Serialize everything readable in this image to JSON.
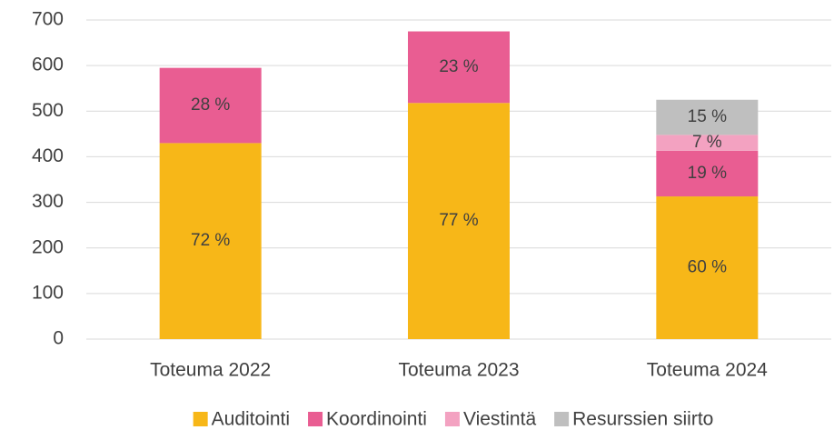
{
  "chart_data": {
    "type": "stacked-bar",
    "categories": [
      "Toteuma 2022",
      "Toteuma 2023",
      "Toteuma 2024"
    ],
    "series": [
      {
        "name": "Auditointi",
        "color": "#f7b718",
        "values": [
          430,
          518,
          313
        ],
        "value_labels": [
          "72 %",
          "77 %",
          "60 %"
        ]
      },
      {
        "name": "Koordinointi",
        "color": "#e95d92",
        "values": [
          165,
          157,
          100
        ],
        "value_labels": [
          "28 %",
          "23 %",
          "19 %"
        ]
      },
      {
        "name": "Viestintä",
        "color": "#f3a2c1",
        "values": [
          null,
          null,
          35
        ],
        "value_labels": [
          null,
          null,
          "7 %"
        ]
      },
      {
        "name": "Resurssien siirto",
        "color": "#bfbfbf",
        "values": [
          null,
          null,
          77
        ],
        "value_labels": [
          null,
          null,
          "15 %"
        ]
      }
    ],
    "ylim": [
      0,
      700
    ],
    "yticks": [
      0,
      100,
      200,
      300,
      400,
      500,
      600,
      700
    ],
    "grid": true,
    "legend": "bottom"
  }
}
